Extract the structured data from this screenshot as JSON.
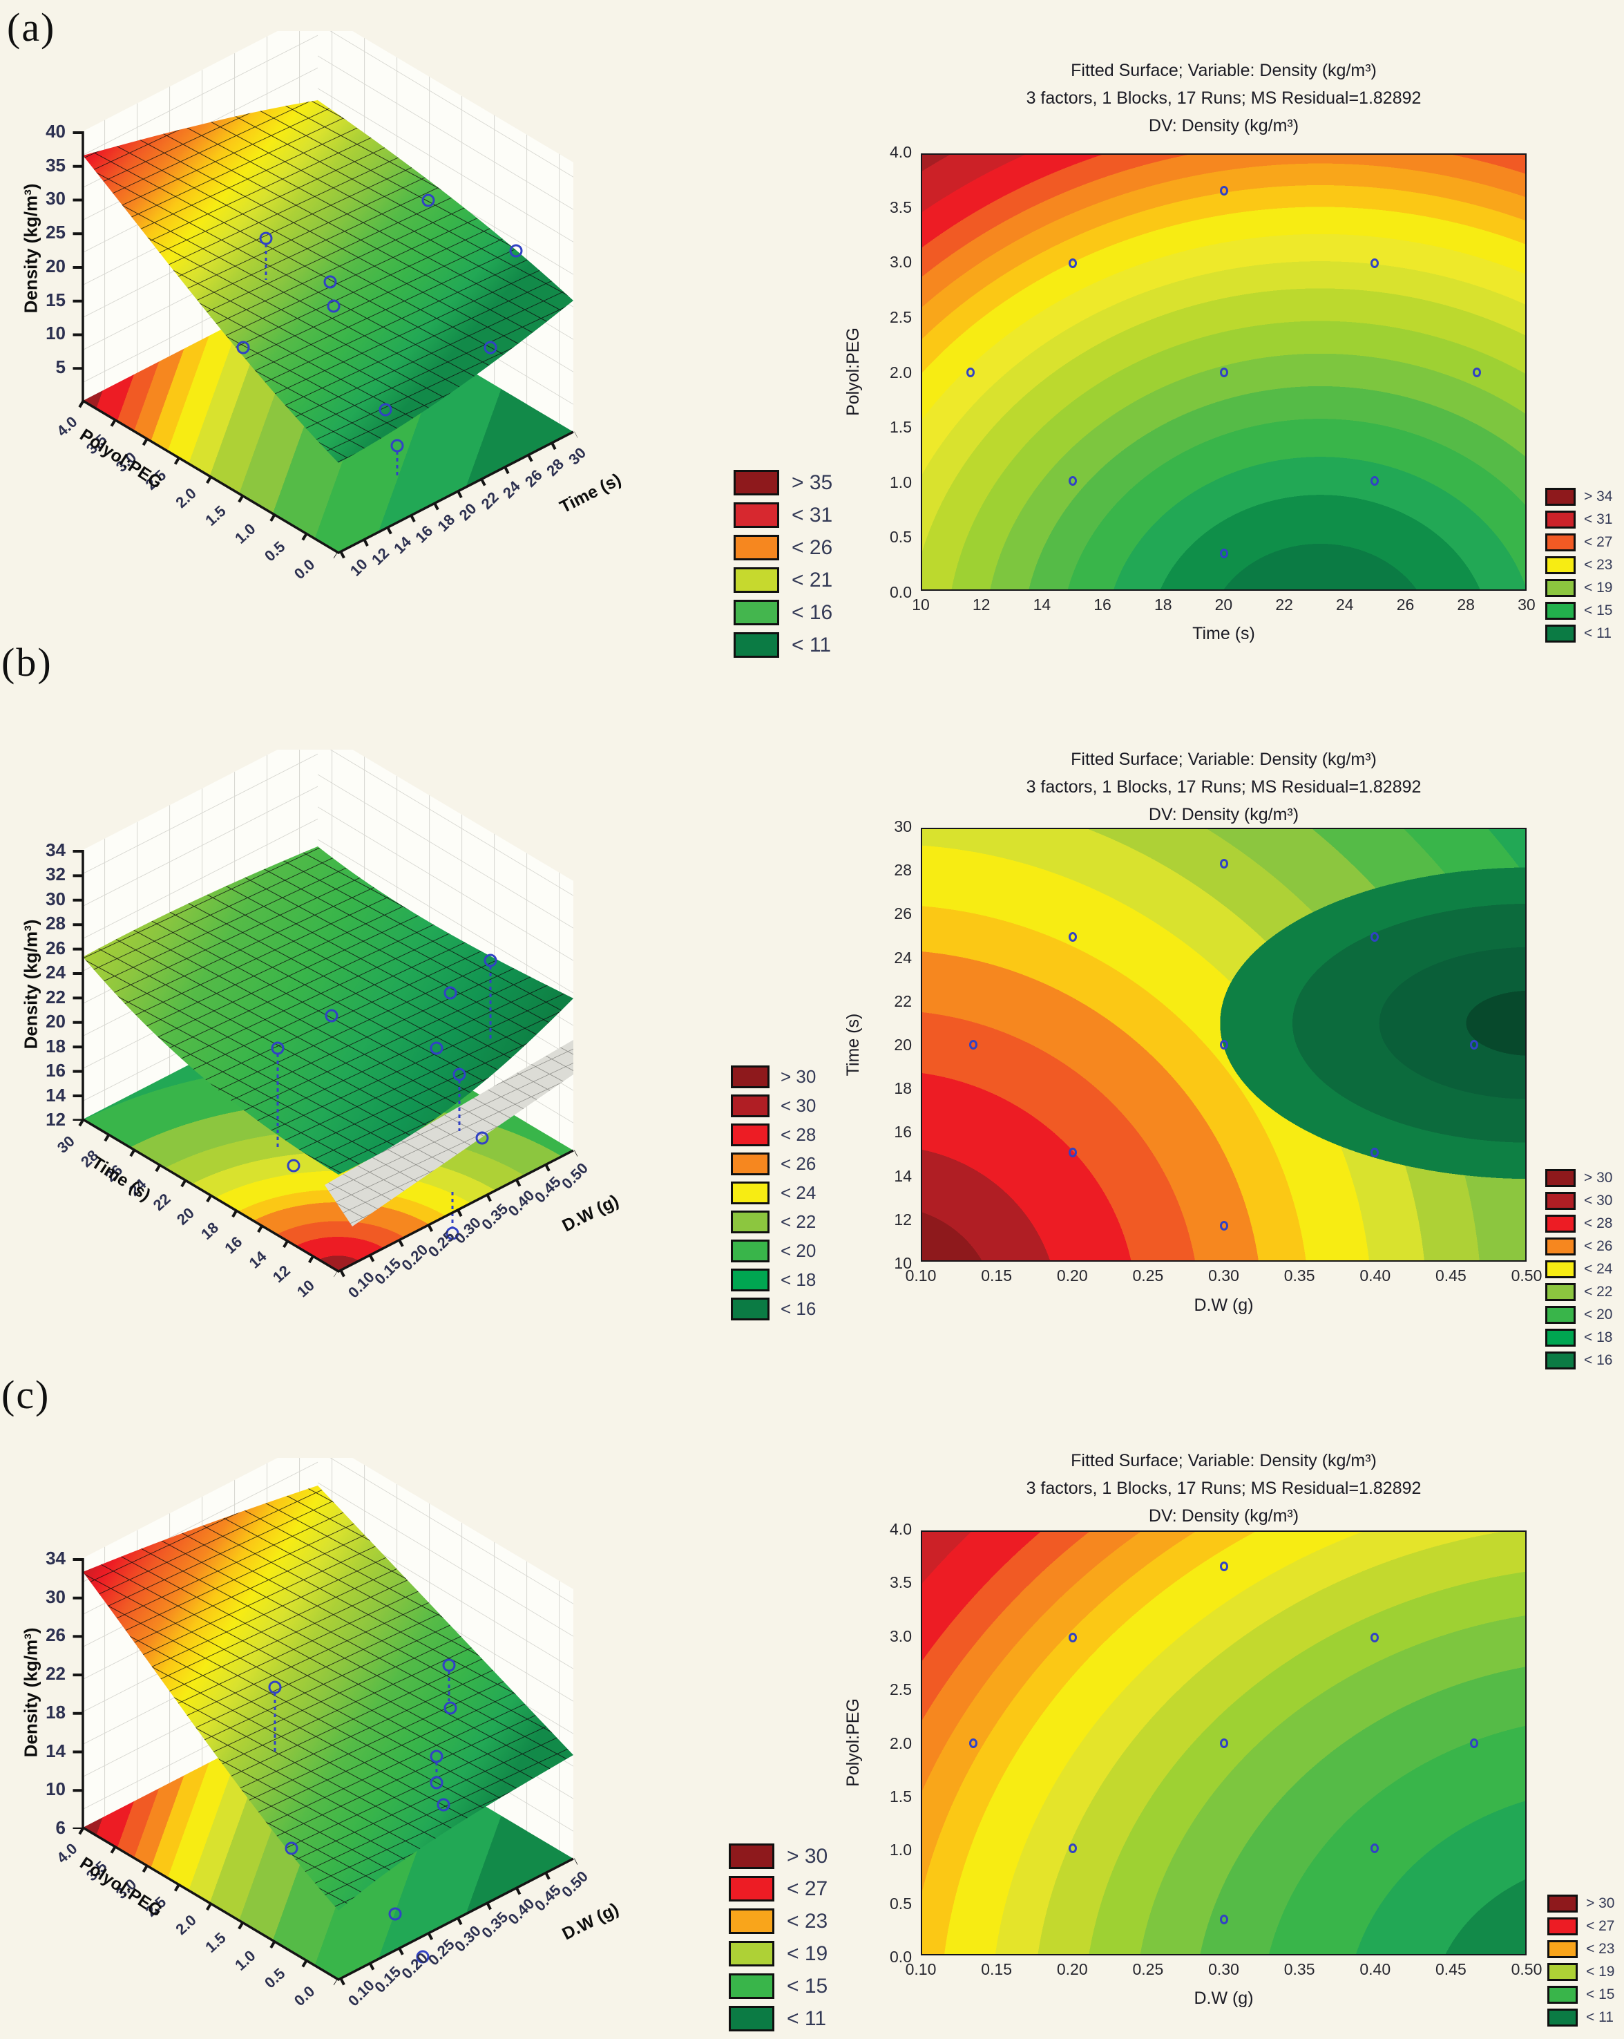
{
  "figure": {
    "background": "#f7f4e9",
    "point_color": "#3142c4"
  },
  "chart_data": [
    {
      "id": "a-surface",
      "type": "surface",
      "panel_label": "(a)",
      "z_label": "Density (kg/m³)",
      "zlim": [
        0,
        40
      ],
      "z_ticks": [
        "40",
        "35",
        "30",
        "25",
        "20",
        "15",
        "10",
        "5"
      ],
      "axis1_label": "Polyol:PEG",
      "axis1_ticks": [
        "4.0",
        "3.5",
        "3.0",
        "2.5",
        "2.0",
        "1.5",
        "1.0",
        "0.5",
        "0.0"
      ],
      "axis2_label": "Time (s)",
      "axis2_ticks": [
        "10",
        "12",
        "14",
        "16",
        "18",
        "20",
        "22",
        "24",
        "26",
        "28",
        "30"
      ],
      "legend": [
        {
          "label": "> 35",
          "color": "#8e191c"
        },
        {
          "label": "< 31",
          "color": "#d7282f"
        },
        {
          "label": "< 26",
          "color": "#f6871f"
        },
        {
          "label": "< 21",
          "color": "#c6d92e"
        },
        {
          "label": "< 16",
          "color": "#44b64e"
        },
        {
          "label": "< 11",
          "color": "#0b7b44"
        }
      ]
    },
    {
      "id": "a-contour",
      "type": "contour",
      "title1": "Fitted Surface; Variable: Density (kg/m³)",
      "title2": "3 factors, 1 Blocks, 17 Runs; MS Residual=1.82892",
      "title3": "DV: Density (kg/m³)",
      "xlabel": "Time (s)",
      "ylabel": "Polyol:PEG",
      "xlim": [
        10,
        30
      ],
      "ylim": [
        0,
        4
      ],
      "x_ticks": [
        "10",
        "12",
        "14",
        "16",
        "18",
        "20",
        "22",
        "24",
        "26",
        "28",
        "30"
      ],
      "y_ticks": [
        "4.0",
        "3.5",
        "3.0",
        "2.5",
        "2.0",
        "1.5",
        "1.0",
        "0.5",
        "0.0"
      ],
      "points": [
        [
          20,
          3.67
        ],
        [
          15,
          3
        ],
        [
          25,
          3
        ],
        [
          11.6,
          2
        ],
        [
          20,
          2
        ],
        [
          28.4,
          2
        ],
        [
          15,
          1
        ],
        [
          25,
          1
        ],
        [
          20,
          0.33
        ]
      ],
      "legend": [
        {
          "label": "> 34",
          "color": "#8e191c"
        },
        {
          "label": "< 31",
          "color": "#cc2229"
        },
        {
          "label": "< 27",
          "color": "#f15a24"
        },
        {
          "label": "< 23",
          "color": "#f7ec13"
        },
        {
          "label": "< 19",
          "color": "#8cc63f"
        },
        {
          "label": "< 15",
          "color": "#22b14c"
        },
        {
          "label": "< 11",
          "color": "#0b7b44"
        }
      ]
    },
    {
      "id": "b-surface",
      "type": "surface",
      "panel_label": "(b)",
      "z_label": "Density (kg/m³)",
      "zlim": [
        12,
        34
      ],
      "z_ticks": [
        "34",
        "32",
        "30",
        "28",
        "26",
        "24",
        "22",
        "20",
        "18",
        "16",
        "14",
        "12"
      ],
      "axis1_label": "Time (s)",
      "axis1_ticks": [
        "30",
        "28",
        "26",
        "24",
        "22",
        "20",
        "18",
        "16",
        "14",
        "12",
        "10"
      ],
      "axis2_label": "D.W (g)",
      "axis2_ticks": [
        "0.10",
        "0.15",
        "0.20",
        "0.25",
        "0.30",
        "0.35",
        "0.40",
        "0.45",
        "0.50"
      ],
      "legend": [
        {
          "label": "> 30",
          "color": "#8e191c"
        },
        {
          "label": "< 30",
          "color": "#b01e24"
        },
        {
          "label": "< 28",
          "color": "#ed1c24"
        },
        {
          "label": "< 26",
          "color": "#f6871f"
        },
        {
          "label": "< 24",
          "color": "#f7ec13"
        },
        {
          "label": "< 22",
          "color": "#8cc63f"
        },
        {
          "label": "< 20",
          "color": "#39b54a"
        },
        {
          "label": "< 18",
          "color": "#00a651"
        },
        {
          "label": "< 16",
          "color": "#0b7b44"
        }
      ]
    },
    {
      "id": "b-contour",
      "type": "contour",
      "title1": "Fitted Surface; Variable: Density (kg/m³)",
      "title2": "3 factors, 1 Blocks, 17 Runs; MS Residual=1.82892",
      "title3": "DV: Density (kg/m³)",
      "xlabel": "D.W (g)",
      "ylabel": "Time (s)",
      "xlim": [
        0.1,
        0.5
      ],
      "ylim": [
        10,
        30
      ],
      "x_ticks": [
        "0.10",
        "0.15",
        "0.20",
        "0.25",
        "0.30",
        "0.35",
        "0.40",
        "0.45",
        "0.50"
      ],
      "y_ticks": [
        "30",
        "28",
        "26",
        "24",
        "22",
        "20",
        "18",
        "16",
        "14",
        "12",
        "10"
      ],
      "points": [
        [
          0.3,
          28.4
        ],
        [
          0.2,
          25
        ],
        [
          0.4,
          25
        ],
        [
          0.134,
          20
        ],
        [
          0.3,
          20
        ],
        [
          0.466,
          20
        ],
        [
          0.2,
          15
        ],
        [
          0.4,
          15
        ],
        [
          0.3,
          11.6
        ]
      ],
      "legend": [
        {
          "label": "> 30",
          "color": "#8e191c"
        },
        {
          "label": "< 30",
          "color": "#b01e24"
        },
        {
          "label": "< 28",
          "color": "#ed1c24"
        },
        {
          "label": "< 26",
          "color": "#f6871f"
        },
        {
          "label": "< 24",
          "color": "#f7ec13"
        },
        {
          "label": "< 22",
          "color": "#8cc63f"
        },
        {
          "label": "< 20",
          "color": "#39b54a"
        },
        {
          "label": "< 18",
          "color": "#00a651"
        },
        {
          "label": "< 16",
          "color": "#0b7b44"
        }
      ]
    },
    {
      "id": "c-surface",
      "type": "surface",
      "panel_label": "(c)",
      "z_label": "Density (kg/m³)",
      "zlim": [
        6,
        34
      ],
      "z_ticks": [
        "34",
        "30",
        "26",
        "22",
        "18",
        "14",
        "10",
        "6"
      ],
      "axis1_label": "Polyol:PEG",
      "axis1_ticks": [
        "4.0",
        "3.5",
        "3.0",
        "2.5",
        "2.0",
        "1.5",
        "1.0",
        "0.5",
        "0.0"
      ],
      "axis2_label": "D.W (g)",
      "axis2_ticks": [
        "0.10",
        "0.15",
        "0.20",
        "0.25",
        "0.30",
        "0.35",
        "0.40",
        "0.45",
        "0.50"
      ],
      "legend": [
        {
          "label": "> 30",
          "color": "#8e191c"
        },
        {
          "label": "< 27",
          "color": "#ed1c24"
        },
        {
          "label": "< 23",
          "color": "#f9a51b"
        },
        {
          "label": "< 19",
          "color": "#aed136"
        },
        {
          "label": "< 15",
          "color": "#39b54a"
        },
        {
          "label": "< 11",
          "color": "#0b7b44"
        }
      ]
    },
    {
      "id": "c-contour",
      "type": "contour",
      "title1": "Fitted Surface; Variable: Density (kg/m³)",
      "title2": "3 factors, 1 Blocks, 17 Runs; MS Residual=1.82892",
      "title3": "DV: Density (kg/m³)",
      "xlabel": "D.W (g)",
      "ylabel": "Polyol:PEG",
      "xlim": [
        0.1,
        0.5
      ],
      "ylim": [
        0,
        4
      ],
      "x_ticks": [
        "0.10",
        "0.15",
        "0.20",
        "0.25",
        "0.30",
        "0.35",
        "0.40",
        "0.45",
        "0.50"
      ],
      "y_ticks": [
        "4.0",
        "3.5",
        "3.0",
        "2.5",
        "2.0",
        "1.5",
        "1.0",
        "0.5",
        "0.0"
      ],
      "points": [
        [
          0.3,
          3.67
        ],
        [
          0.2,
          3
        ],
        [
          0.4,
          3
        ],
        [
          0.134,
          2
        ],
        [
          0.3,
          2
        ],
        [
          0.466,
          2
        ],
        [
          0.2,
          1
        ],
        [
          0.4,
          1
        ],
        [
          0.3,
          0.33
        ]
      ],
      "legend": [
        {
          "label": "> 30",
          "color": "#8e191c"
        },
        {
          "label": "< 27",
          "color": "#ed1c24"
        },
        {
          "label": "< 23",
          "color": "#f9a51b"
        },
        {
          "label": "< 19",
          "color": "#aed136"
        },
        {
          "label": "< 15",
          "color": "#39b54a"
        },
        {
          "label": "< 11",
          "color": "#0b7b44"
        }
      ]
    }
  ]
}
